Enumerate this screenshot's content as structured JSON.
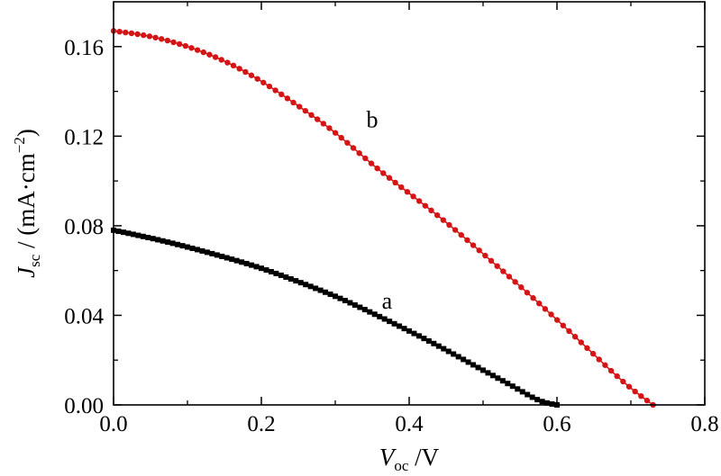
{
  "chart_data": {
    "type": "line",
    "xlabel": {
      "symbol": "V",
      "sub": "oc",
      "unit": " /V"
    },
    "ylabel": {
      "symbol": "J",
      "sub": "sc",
      "unit_pre": " / (mA·cm",
      "unit_sup": "−2",
      "unit_post": ")"
    },
    "xlim": [
      0.0,
      0.8
    ],
    "ylim": [
      0.0,
      0.18
    ],
    "xticks": [
      0.0,
      0.2,
      0.4,
      0.6,
      0.8
    ],
    "xtick_labels": [
      "0.0",
      "0.2",
      "0.4",
      "0.6",
      "0.8"
    ],
    "yticks": [
      0.0,
      0.04,
      0.08,
      0.12,
      0.16
    ],
    "ytick_labels": [
      "0.00",
      "0.04",
      "0.08",
      "0.12",
      "0.16"
    ],
    "grid": false,
    "legend": "none",
    "series": [
      {
        "name": "a",
        "color": "#000000",
        "marker": "square",
        "x": [
          0.0,
          0.05,
          0.1,
          0.15,
          0.2,
          0.25,
          0.3,
          0.35,
          0.4,
          0.45,
          0.5,
          0.55,
          0.58,
          0.6
        ],
        "y": [
          0.078,
          0.0745,
          0.0705,
          0.066,
          0.061,
          0.055,
          0.0485,
          0.041,
          0.033,
          0.0245,
          0.0155,
          0.0065,
          0.0015,
          0.0
        ]
      },
      {
        "name": "b",
        "color": "#d41515",
        "marker": "circle",
        "x": [
          0.0,
          0.05,
          0.1,
          0.15,
          0.2,
          0.25,
          0.3,
          0.35,
          0.4,
          0.45,
          0.5,
          0.55,
          0.6,
          0.65,
          0.7,
          0.73
        ],
        "y": [
          0.167,
          0.1645,
          0.16,
          0.1535,
          0.1445,
          0.1335,
          0.1215,
          0.1075,
          0.0945,
          0.0815,
          0.0675,
          0.053,
          0.038,
          0.0225,
          0.0075,
          0.0
        ]
      }
    ],
    "annotations": [
      {
        "text": "a",
        "x": 0.37,
        "y": 0.043
      },
      {
        "text": "b",
        "x": 0.35,
        "y": 0.124
      }
    ]
  }
}
